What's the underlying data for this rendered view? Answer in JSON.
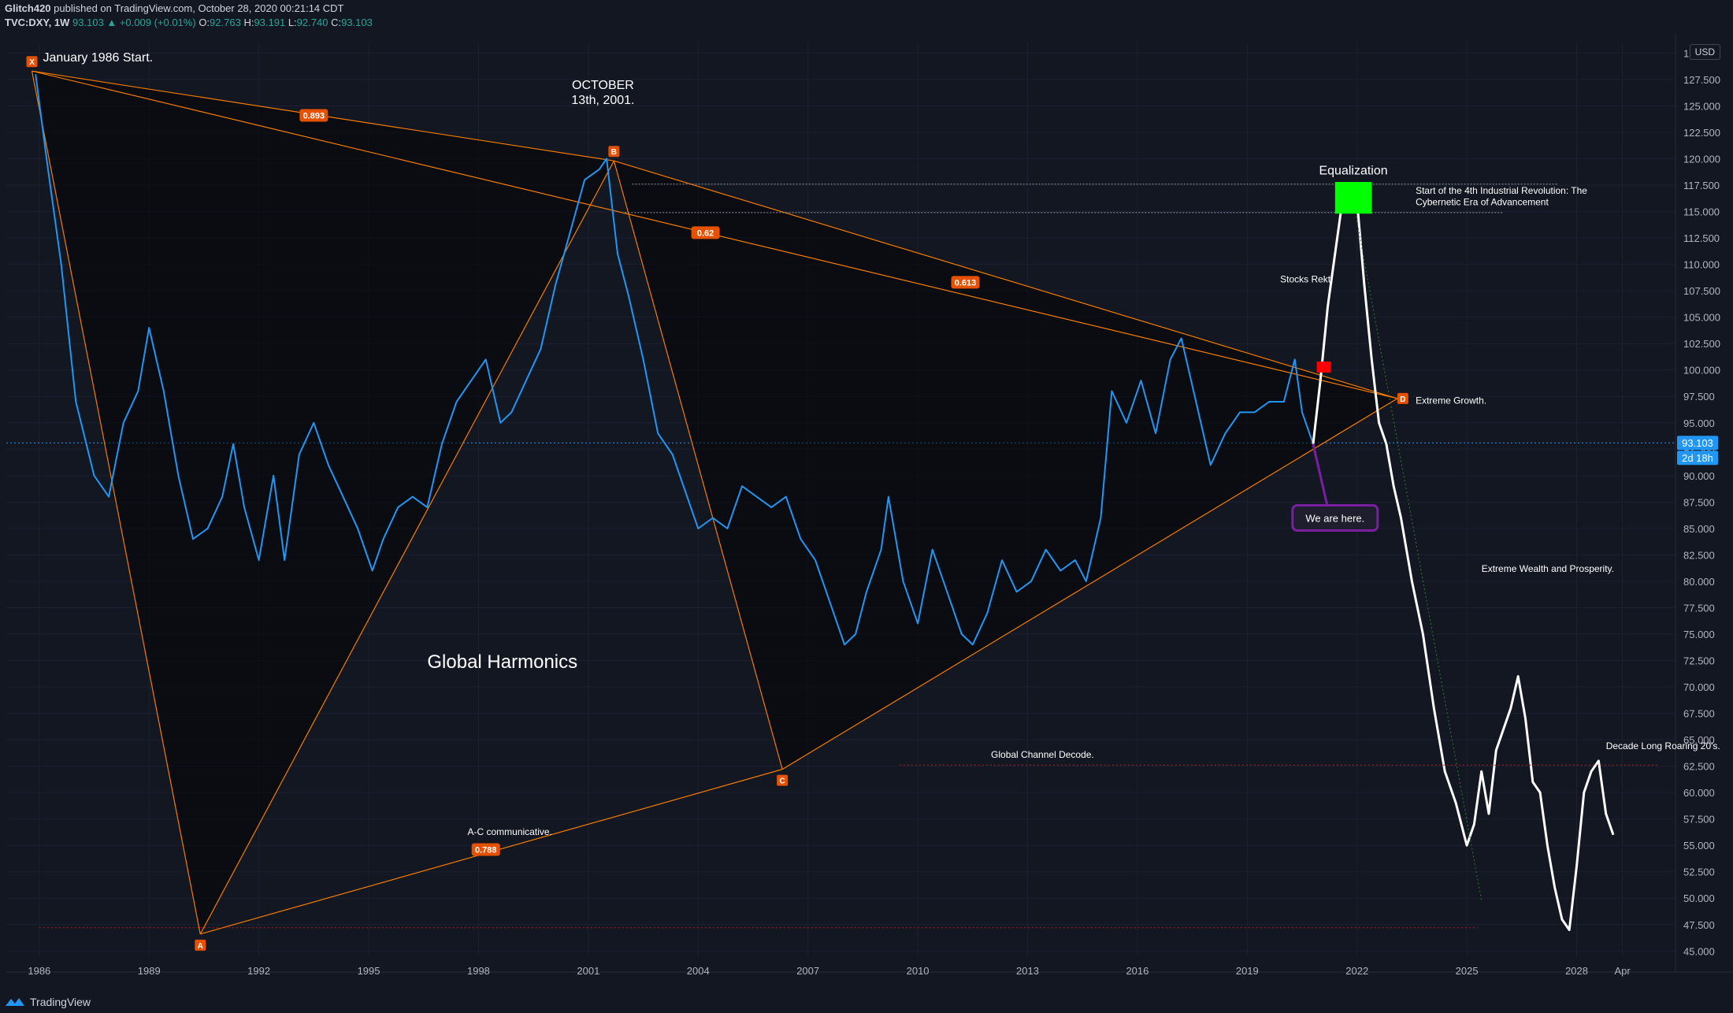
{
  "header": {
    "publisher": "Glitch420",
    "published_text": "published on TradingView.com, October 28, 2020 00:21:14 CDT",
    "symbol": "TVC:DXY, 1W",
    "last": "93.103",
    "change": "▲ +0.009 (+0.01%)",
    "o_label": "O:",
    "o": "92.763",
    "h_label": "H:",
    "h": "93.191",
    "l_label": "L:",
    "l": "92.740",
    "c_label": "C:",
    "c": "93.103"
  },
  "currency": "USD",
  "footer": {
    "brand": "TradingView"
  },
  "colors": {
    "background": "#131722",
    "price_line": "#2196f3",
    "projection": "#ffffff",
    "pattern": "#f57c00",
    "grid_text": "#b2b5be",
    "target_box": "#00ff00",
    "marker_red": "#ff0000",
    "callout": "#7b1fa2"
  },
  "chart_data": {
    "type": "line",
    "symbol": "TVC:DXY",
    "interval": "1W",
    "ylim": [
      44.5,
      131
    ],
    "y_ticks": [
      "45.000",
      "47.500",
      "50.000",
      "52.500",
      "55.000",
      "57.500",
      "60.000",
      "62.500",
      "65.000",
      "67.500",
      "70.000",
      "72.500",
      "75.000",
      "77.500",
      "80.000",
      "82.500",
      "85.000",
      "87.500",
      "90.000",
      "92.500",
      "95.000",
      "97.500",
      "100.000",
      "102.500",
      "105.000",
      "107.500",
      "110.000",
      "112.500",
      "115.000",
      "117.500",
      "120.000",
      "122.500",
      "125.000",
      "127.500",
      "130.000"
    ],
    "x_ticks": [
      "1986",
      "1989",
      "1992",
      "1995",
      "1998",
      "2001",
      "2004",
      "2007",
      "2010",
      "2013",
      "2016",
      "2019",
      "2022",
      "2025",
      "2028",
      "Apr"
    ],
    "x_tick_values": [
      1986,
      1989,
      1992,
      1995,
      1998,
      2001,
      2004,
      2007,
      2010,
      2013,
      2016,
      2019,
      2022,
      2025,
      2028,
      2029.25
    ],
    "xlim": [
      1985.1,
      2030.7
    ],
    "current_price": "93.103",
    "countdown": "2d 18h",
    "series": [
      {
        "name": "DXY",
        "x": [
          1985.9,
          1986.2,
          1986.6,
          1987.0,
          1987.5,
          1987.9,
          1988.3,
          1988.7,
          1989.0,
          1989.4,
          1989.8,
          1990.2,
          1990.6,
          1991.0,
          1991.3,
          1991.6,
          1992.0,
          1992.4,
          1992.7,
          1993.1,
          1993.5,
          1993.9,
          1994.3,
          1994.7,
          1995.1,
          1995.4,
          1995.8,
          1996.2,
          1996.6,
          1997.0,
          1997.4,
          1997.8,
          1998.2,
          1998.6,
          1998.9,
          1999.3,
          1999.7,
          2000.1,
          2000.5,
          2000.9,
          2001.3,
          2001.5,
          2001.8,
          2002.1,
          2002.5,
          2002.9,
          2003.3,
          2003.7,
          2004.0,
          2004.4,
          2004.8,
          2005.2,
          2005.6,
          2006.0,
          2006.4,
          2006.8,
          2007.2,
          2007.6,
          2008.0,
          2008.3,
          2008.6,
          2009.0,
          2009.2,
          2009.6,
          2010.0,
          2010.4,
          2010.8,
          2011.2,
          2011.5,
          2011.9,
          2012.3,
          2012.7,
          2013.1,
          2013.5,
          2013.9,
          2014.3,
          2014.6,
          2015.0,
          2015.3,
          2015.7,
          2016.1,
          2016.5,
          2016.9,
          2017.2,
          2017.6,
          2018.0,
          2018.4,
          2018.8,
          2019.2,
          2019.6,
          2020.0,
          2020.3,
          2020.5,
          2020.8
        ],
        "y": [
          128,
          120,
          110,
          97,
          90,
          88,
          95,
          98,
          104,
          98,
          90,
          84,
          85,
          88,
          93,
          87,
          82,
          90,
          82,
          92,
          95,
          91,
          88,
          85,
          81,
          84,
          87,
          88,
          87,
          93,
          97,
          99,
          101,
          95,
          96,
          99,
          102,
          108,
          113,
          118,
          119,
          120,
          111,
          107,
          101,
          94,
          92,
          88,
          85,
          86,
          85,
          89,
          88,
          87,
          88,
          84,
          82,
          78,
          74,
          75,
          79,
          83,
          88,
          80,
          76,
          83,
          79,
          75,
          74,
          77,
          82,
          79,
          80,
          83,
          81,
          82,
          80,
          86,
          98,
          95,
          99,
          94,
          101,
          103,
          97,
          91,
          94,
          96,
          96,
          97,
          97,
          101,
          96,
          93
        ]
      },
      {
        "name": "Projection",
        "x": [
          2020.8,
          2021.0,
          2021.2,
          2021.4,
          2021.6,
          2021.8,
          2022.0,
          2022.2,
          2022.4,
          2022.6,
          2022.8,
          2023.0,
          2023.2,
          2023.5,
          2023.8,
          2024.1,
          2024.4,
          2024.7,
          2025.0,
          2025.2,
          2025.4,
          2025.6,
          2025.8,
          2026.0,
          2026.2,
          2026.4,
          2026.6,
          2026.8,
          2027.0,
          2027.2,
          2027.4,
          2027.6,
          2027.8,
          2028.0,
          2028.2,
          2028.4,
          2028.6,
          2028.8,
          2029.0
        ],
        "y": [
          93,
          99,
          106,
          111,
          116,
          117,
          116,
          108,
          101,
          95,
          93,
          89,
          86,
          80,
          75,
          68,
          62,
          59,
          55,
          57,
          62,
          58,
          64,
          66,
          68,
          71,
          67,
          61,
          60,
          55,
          51,
          48,
          47,
          53,
          60,
          62,
          63,
          58,
          56
        ]
      }
    ],
    "pattern": {
      "points": [
        {
          "label": "X",
          "x": 1985.8,
          "y": 128.3
        },
        {
          "label": "A",
          "x": 1990.4,
          "y": 46.6
        },
        {
          "label": "B",
          "x": 2001.7,
          "y": 119.8
        },
        {
          "label": "C",
          "x": 2006.3,
          "y": 62.2
        },
        {
          "label": "D",
          "x": 2023.1,
          "y": 97.3
        }
      ],
      "ratios": [
        {
          "text": "0.893",
          "x": 1993.5,
          "y": 124.1
        },
        {
          "text": "0.62",
          "x": 2004.2,
          "y": 113.0
        },
        {
          "text": "0.613",
          "x": 2011.3,
          "y": 108.3
        },
        {
          "text": "0.788",
          "x": 1998.2,
          "y": 54.6
        }
      ]
    },
    "annotations": [
      {
        "text": "January 1986 Start.",
        "x": 1986.1,
        "y": 129.2
      },
      {
        "text": "OCTOBER",
        "x": 2001.4,
        "y": 126.6
      },
      {
        "text": "13th, 2001.",
        "x": 2001.4,
        "y": 125.2
      },
      {
        "text": "Equalization",
        "x": 2021.9,
        "y": 118.5
      },
      {
        "text": "Start of the 4th Industrial Revolution: The",
        "x": 2023.6,
        "y": 116.7
      },
      {
        "text": "Cybernetic Era of Advancement",
        "x": 2023.6,
        "y": 115.6
      },
      {
        "text": "Stocks Rekt.",
        "x": 2019.9,
        "y": 108.3
      },
      {
        "text": "Extreme Growth.",
        "x": 2023.6,
        "y": 96.8
      },
      {
        "text": "Extreme Wealth and Prosperity.",
        "x": 2025.4,
        "y": 80.9
      },
      {
        "text": "Global Harmonics",
        "x": 1996.6,
        "y": 71.8
      },
      {
        "text": "Global Channel Decode.",
        "x": 2012.0,
        "y": 63.3
      },
      {
        "text": "A-C communicative.",
        "x": 1997.7,
        "y": 56.0
      },
      {
        "text": "Decade Long Roaring 20's.",
        "x": 2028.8,
        "y": 64.1
      },
      {
        "text": "We are here.",
        "x": 2021.4,
        "y": 86.0
      }
    ]
  }
}
